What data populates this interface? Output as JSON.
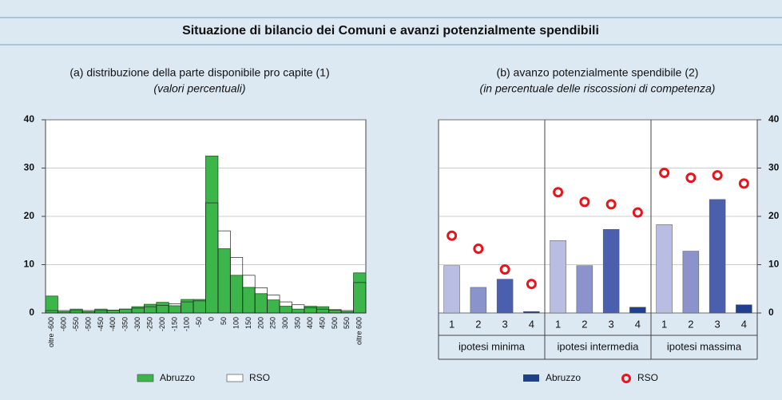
{
  "title": "Situazione di bilancio dei Comuni e avanzi potenzialmente spendibili",
  "chart_data": [
    {
      "type": "bar",
      "title": "(a) distribuzione della parte disponibile pro capite (1)",
      "subtitle": "(valori percentuali)",
      "categories": [
        "oltre -600",
        "-600",
        "-550",
        "-500",
        "-450",
        "-400",
        "-350",
        "-300",
        "-250",
        "-200",
        "-150",
        "-100",
        "-50",
        "0",
        "50",
        "100",
        "150",
        "200",
        "250",
        "300",
        "350",
        "400",
        "450",
        "500",
        "550",
        "oltre 600"
      ],
      "series": [
        {
          "name": "Abruzzo",
          "color": "#3cb54a",
          "values": [
            3.5,
            0.3,
            0.8,
            0.3,
            0.8,
            0.6,
            0.8,
            1.3,
            1.8,
            2.2,
            1.5,
            2.8,
            2.8,
            32.5,
            13.3,
            7.8,
            5.3,
            4.0,
            2.7,
            1.4,
            0.8,
            1.4,
            1.3,
            0.7,
            0.3,
            8.3
          ]
        },
        {
          "name": "RSO",
          "color": "#ffffff",
          "values": [
            0.5,
            0.5,
            0.5,
            0.5,
            0.5,
            0.6,
            0.8,
            1.0,
            1.3,
            1.6,
            1.9,
            2.3,
            2.5,
            22.8,
            17.0,
            11.5,
            7.8,
            5.2,
            3.7,
            2.3,
            1.7,
            1.1,
            0.8,
            0.6,
            0.5,
            6.3
          ]
        }
      ],
      "ylim": [
        0,
        40
      ],
      "yticks": [
        0,
        10,
        20,
        30,
        40
      ],
      "grid": true
    },
    {
      "type": "bar",
      "title": "(b) avanzo potenzialmente spendibile (2)",
      "subtitle": "(in percentuale delle riscossioni di competenza)",
      "categories": [
        "1",
        "2",
        "3",
        "4",
        "1",
        "2",
        "3",
        "4",
        "1",
        "2",
        "3",
        "4"
      ],
      "groups": [
        "ipotesi minima",
        "ipotesi intermedia",
        "ipotesi massima"
      ],
      "series": [
        {
          "name": "Abruzzo",
          "type": "bar",
          "color": "#1f3f8f",
          "colors": [
            "#b9bde2",
            "#8a93cc",
            "#4a5fae",
            "#1f3f8f",
            "#b9bde2",
            "#8a93cc",
            "#4a5fae",
            "#1f3f8f",
            "#b9bde2",
            "#8a93cc",
            "#4a5fae",
            "#1f3f8f"
          ],
          "values": [
            9.8,
            5.3,
            7.0,
            0.3,
            15.0,
            9.8,
            17.3,
            1.2,
            18.3,
            12.8,
            23.5,
            1.7
          ]
        },
        {
          "name": "RSO",
          "type": "scatter",
          "color": "#e8141c",
          "values": [
            16.0,
            13.3,
            9.0,
            6.0,
            25.0,
            23.0,
            22.5,
            20.8,
            29.0,
            28.0,
            28.5,
            26.8
          ]
        }
      ],
      "ylim": [
        0,
        40
      ],
      "yticks": [
        0,
        10,
        20,
        30,
        40
      ],
      "grid": true,
      "y_axis_side": "right"
    }
  ]
}
